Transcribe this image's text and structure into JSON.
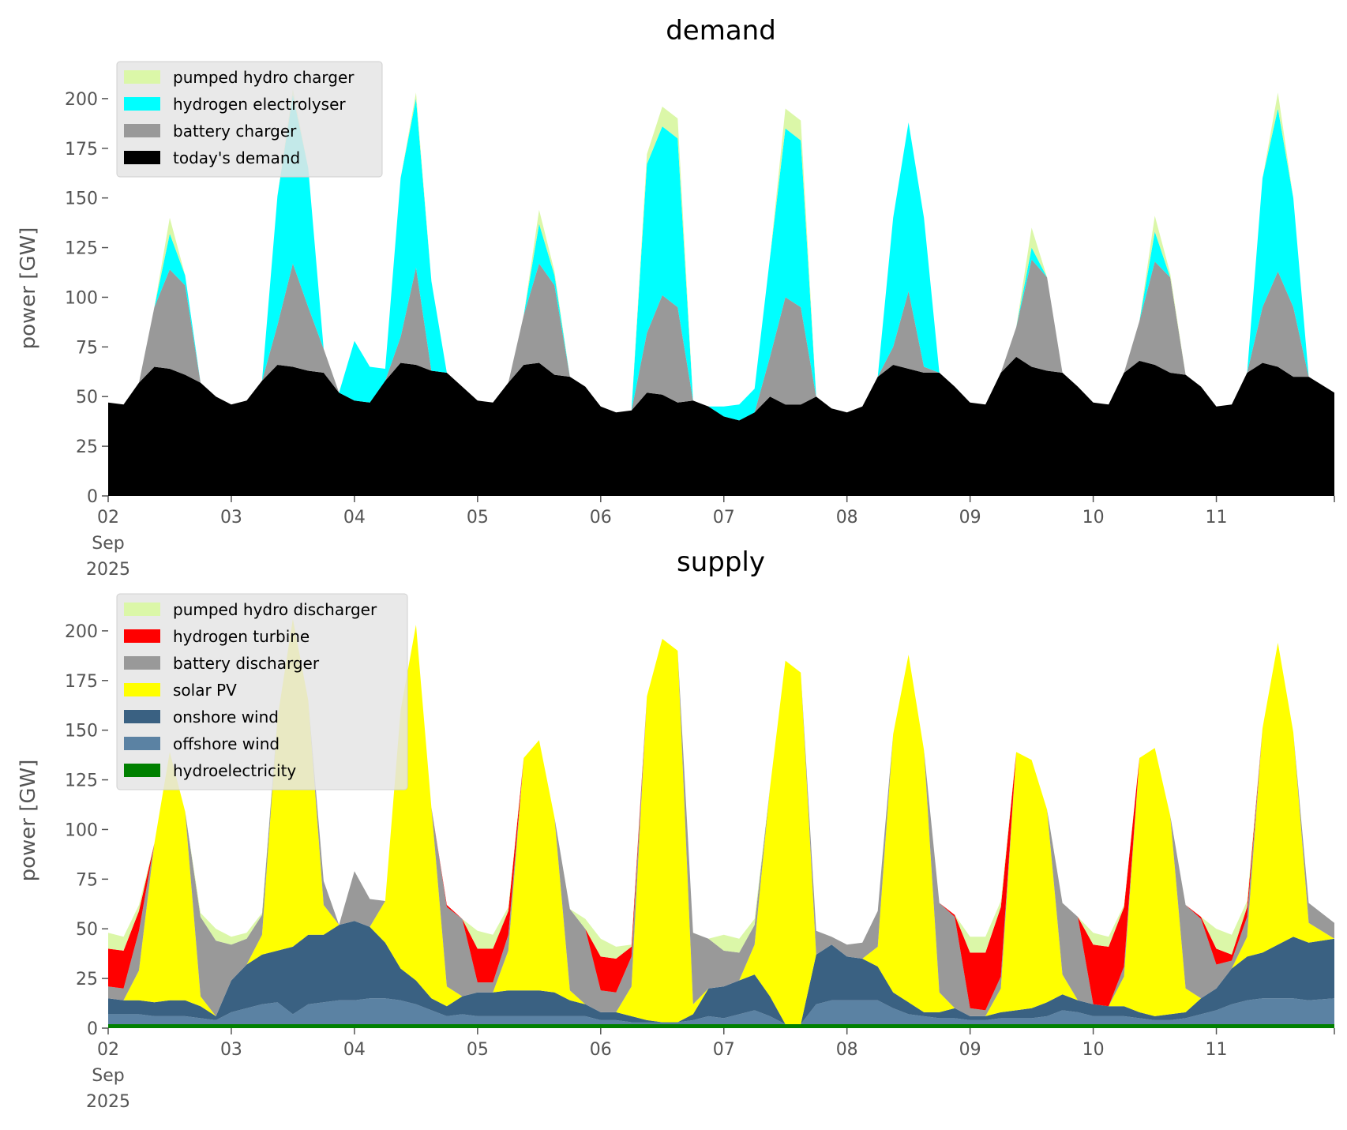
{
  "chart_data": [
    {
      "type": "area",
      "stacked": true,
      "title": "demand",
      "ylabel": "power [GW]",
      "xlabel": "",
      "ylim": [
        0,
        225
      ],
      "yticks": [
        0,
        25,
        50,
        75,
        100,
        125,
        150,
        175,
        200
      ],
      "x_start": "2025-09-02 00:00",
      "x_step_hours": 3,
      "x_range_hours": [
        0,
        239
      ],
      "xticks": [
        {
          "hour": 0,
          "label": "02",
          "sub1": "Sep",
          "sub2": "2025"
        },
        {
          "hour": 24,
          "label": "03"
        },
        {
          "hour": 48,
          "label": "04"
        },
        {
          "hour": 72,
          "label": "05"
        },
        {
          "hour": 96,
          "label": "06"
        },
        {
          "hour": 120,
          "label": "07"
        },
        {
          "hour": 144,
          "label": "08"
        },
        {
          "hour": 168,
          "label": "09"
        },
        {
          "hour": 192,
          "label": "10"
        },
        {
          "hour": 216,
          "label": "11"
        },
        {
          "hour": 239,
          "label": ""
        }
      ],
      "legend_position": "upper-left",
      "legend_order": [
        "pumped hydro charger",
        "hydrogen electrolyser",
        "battery charger",
        "today's demand"
      ],
      "series": [
        {
          "name": "today's demand",
          "color": "#000000",
          "values": [
            47,
            46,
            57,
            65,
            64,
            61,
            57,
            50,
            46,
            48,
            58,
            66,
            65,
            63,
            62,
            52,
            48,
            47,
            58,
            67,
            66,
            63,
            62,
            55,
            48,
            47,
            57,
            66,
            67,
            61,
            60,
            55,
            45,
            42,
            43,
            52,
            51,
            47,
            48,
            45,
            40,
            38,
            42,
            50,
            46,
            46,
            50,
            44,
            42,
            45,
            60,
            66,
            64,
            62,
            62,
            55,
            47,
            46,
            62,
            70,
            65,
            63,
            62,
            55,
            47,
            46,
            62,
            68,
            66,
            62,
            61,
            55,
            45,
            46,
            62,
            67,
            65,
            60,
            60,
            52
          ]
        },
        {
          "name": "battery charger",
          "color": "#999999",
          "values": [
            0,
            0,
            0,
            30,
            50,
            45,
            0,
            0,
            0,
            0,
            0,
            20,
            52,
            32,
            12,
            0,
            0,
            0,
            0,
            13,
            49,
            0,
            0,
            0,
            0,
            0,
            0,
            25,
            50,
            45,
            0,
            0,
            0,
            0,
            0,
            30,
            50,
            48,
            0,
            0,
            0,
            0,
            0,
            20,
            54,
            49,
            0,
            0,
            0,
            0,
            0,
            9,
            39,
            3,
            0,
            0,
            0,
            0,
            0,
            15,
            54,
            47,
            0,
            0,
            0,
            0,
            0,
            20,
            52,
            48,
            0,
            0,
            0,
            0,
            0,
            28,
            48,
            35,
            0,
            0
          ]
        },
        {
          "name": "hydrogen electrolyser",
          "color": "#00ffff",
          "values": [
            0,
            0,
            0,
            0,
            18,
            5,
            0,
            0,
            0,
            0,
            0,
            65,
            85,
            70,
            0,
            0,
            30,
            18,
            6,
            80,
            85,
            45,
            0,
            0,
            0,
            0,
            0,
            0,
            20,
            5,
            0,
            0,
            0,
            0,
            0,
            85,
            85,
            85,
            0,
            0,
            5,
            8,
            12,
            50,
            85,
            84,
            0,
            0,
            0,
            0,
            0,
            65,
            85,
            75,
            0,
            0,
            0,
            0,
            0,
            0,
            6,
            0,
            0,
            0,
            0,
            0,
            0,
            0,
            15,
            0,
            0,
            0,
            0,
            0,
            0,
            65,
            82,
            55,
            0,
            0
          ]
        },
        {
          "name": "pumped hydro charger",
          "color": "#dbf7a8",
          "values": [
            0,
            0,
            0,
            0,
            8,
            0,
            0,
            0,
            0,
            0,
            0,
            0,
            3,
            0,
            0,
            0,
            0,
            0,
            0,
            0,
            3,
            0,
            0,
            0,
            0,
            0,
            0,
            0,
            7,
            2,
            0,
            0,
            0,
            0,
            0,
            5,
            10,
            10,
            0,
            0,
            0,
            0,
            0,
            0,
            10,
            10,
            0,
            0,
            0,
            0,
            0,
            0,
            0,
            0,
            0,
            0,
            0,
            0,
            0,
            0,
            10,
            0,
            0,
            0,
            0,
            0,
            0,
            0,
            8,
            2,
            0,
            0,
            0,
            0,
            0,
            0,
            8,
            0,
            0,
            0
          ]
        }
      ]
    },
    {
      "type": "area",
      "stacked": true,
      "title": "supply",
      "ylabel": "power [GW]",
      "xlabel": "",
      "ylim": [
        0,
        225
      ],
      "yticks": [
        0,
        25,
        50,
        75,
        100,
        125,
        150,
        175,
        200
      ],
      "x_start": "2025-09-02 00:00",
      "x_step_hours": 3,
      "x_range_hours": [
        0,
        239
      ],
      "xticks": [
        {
          "hour": 0,
          "label": "02",
          "sub1": "Sep",
          "sub2": "2025"
        },
        {
          "hour": 24,
          "label": "03"
        },
        {
          "hour": 48,
          "label": "04"
        },
        {
          "hour": 72,
          "label": "05"
        },
        {
          "hour": 96,
          "label": "06"
        },
        {
          "hour": 120,
          "label": "07"
        },
        {
          "hour": 144,
          "label": "08"
        },
        {
          "hour": 168,
          "label": "09"
        },
        {
          "hour": 192,
          "label": "10"
        },
        {
          "hour": 216,
          "label": "11"
        },
        {
          "hour": 239,
          "label": ""
        }
      ],
      "legend_position": "upper-left",
      "legend_order": [
        "pumped hydro discharger",
        "hydrogen turbine",
        "battery discharger",
        "solar PV",
        "onshore wind",
        "offshore wind",
        "hydroelectricity"
      ],
      "series": [
        {
          "name": "hydroelectricity",
          "color": "#008000",
          "values": [
            2,
            2,
            2,
            2,
            2,
            2,
            2,
            2,
            2,
            2,
            2,
            2,
            2,
            2,
            2,
            2,
            2,
            2,
            2,
            2,
            2,
            2,
            2,
            2,
            2,
            2,
            2,
            2,
            2,
            2,
            2,
            2,
            2,
            2,
            2,
            2,
            2,
            2,
            2,
            2,
            2,
            2,
            2,
            2,
            2,
            2,
            2,
            2,
            2,
            2,
            2,
            2,
            2,
            2,
            2,
            2,
            2,
            2,
            2,
            2,
            2,
            2,
            2,
            2,
            2,
            2,
            2,
            2,
            2,
            2,
            2,
            2,
            2,
            2,
            2,
            2,
            2,
            2,
            2,
            2
          ]
        },
        {
          "name": "offshore wind",
          "color": "#5b82a3",
          "values": [
            5,
            5,
            5,
            4,
            4,
            4,
            3,
            2,
            6,
            8,
            10,
            11,
            5,
            10,
            11,
            12,
            12,
            13,
            13,
            12,
            10,
            7,
            4,
            5,
            4,
            4,
            4,
            4,
            4,
            4,
            4,
            4,
            2,
            2,
            1,
            1,
            1,
            1,
            2,
            4,
            3,
            5,
            7,
            4,
            0,
            0,
            10,
            12,
            12,
            12,
            12,
            8,
            5,
            4,
            3,
            3,
            2,
            2,
            3,
            3,
            3,
            4,
            7,
            6,
            4,
            4,
            4,
            3,
            2,
            2,
            3,
            5,
            7,
            10,
            12,
            13,
            13,
            13,
            12,
            13
          ]
        },
        {
          "name": "onshore wind",
          "color": "#3a6182",
          "values": [
            8,
            7,
            7,
            7,
            8,
            8,
            6,
            2,
            16,
            22,
            25,
            26,
            34,
            35,
            34,
            38,
            40,
            36,
            28,
            16,
            12,
            6,
            5,
            9,
            12,
            12,
            13,
            13,
            13,
            12,
            8,
            6,
            4,
            4,
            3,
            1,
            0,
            0,
            3,
            14,
            16,
            17,
            18,
            10,
            0,
            0,
            25,
            28,
            22,
            21,
            17,
            8,
            6,
            2,
            3,
            5,
            2,
            2,
            3,
            4,
            5,
            7,
            8,
            6,
            6,
            5,
            5,
            3,
            2,
            3,
            3,
            8,
            11,
            18,
            22,
            23,
            27,
            31,
            29,
            30
          ]
        },
        {
          "name": "solar PV",
          "color": "#ffff00",
          "values": [
            0,
            0,
            15,
            80,
            125,
            95,
            5,
            0,
            0,
            0,
            10,
            117,
            165,
            118,
            15,
            0,
            0,
            0,
            21,
            130,
            179,
            96,
            10,
            0,
            0,
            0,
            20,
            117,
            126,
            88,
            5,
            0,
            0,
            0,
            15,
            163,
            193,
            187,
            5,
            0,
            0,
            0,
            15,
            105,
            183,
            177,
            0,
            0,
            0,
            0,
            10,
            130,
            175,
            132,
            10,
            0,
            0,
            0,
            12,
            130,
            125,
            97,
            10,
            0,
            0,
            0,
            15,
            128,
            135,
            100,
            12,
            0,
            0,
            0,
            10,
            113,
            152,
            103,
            10,
            0
          ]
        },
        {
          "name": "battery discharger",
          "color": "#999999",
          "values": [
            6,
            6,
            20,
            0,
            0,
            0,
            40,
            38,
            18,
            13,
            10,
            0,
            0,
            0,
            12,
            0,
            25,
            14,
            0,
            0,
            0,
            0,
            40,
            39,
            5,
            5,
            8,
            0,
            0,
            0,
            41,
            38,
            11,
            10,
            15,
            0,
            0,
            0,
            36,
            25,
            18,
            14,
            10,
            0,
            0,
            0,
            12,
            4,
            6,
            8,
            18,
            0,
            0,
            0,
            45,
            46,
            4,
            3,
            6,
            0,
            0,
            0,
            36,
            42,
            0,
            0,
            5,
            0,
            0,
            0,
            42,
            40,
            12,
            4,
            10,
            0,
            0,
            0,
            10,
            8
          ]
        },
        {
          "name": "hydrogen turbine",
          "color": "#ff0000",
          "values": [
            19,
            19,
            10,
            0,
            0,
            0,
            0,
            0,
            0,
            0,
            0,
            0,
            0,
            0,
            0,
            0,
            0,
            0,
            0,
            0,
            0,
            0,
            1,
            0,
            17,
            17,
            12,
            0,
            0,
            0,
            0,
            0,
            17,
            17,
            5,
            0,
            0,
            0,
            0,
            0,
            0,
            0,
            0,
            0,
            0,
            0,
            0,
            0,
            0,
            0,
            0,
            0,
            0,
            0,
            0,
            1,
            28,
            29,
            35,
            0,
            0,
            0,
            0,
            0,
            30,
            30,
            30,
            0,
            0,
            0,
            0,
            1,
            8,
            3,
            5,
            0,
            0,
            0,
            0,
            0
          ]
        },
        {
          "name": "pumped hydro discharger",
          "color": "#dbf7a8",
          "values": [
            8,
            7,
            3,
            0,
            0,
            0,
            2,
            6,
            4,
            3,
            1,
            0,
            0,
            0,
            0,
            0,
            0,
            0,
            0,
            0,
            0,
            0,
            0,
            0,
            9,
            7,
            2,
            0,
            0,
            0,
            0,
            5,
            9,
            6,
            1,
            0,
            0,
            0,
            0,
            0,
            8,
            7,
            3,
            0,
            0,
            0,
            0,
            0,
            0,
            0,
            0,
            0,
            0,
            0,
            0,
            0,
            8,
            8,
            3,
            0,
            0,
            0,
            0,
            0,
            6,
            5,
            1,
            0,
            0,
            0,
            0,
            0,
            10,
            10,
            3,
            0,
            0,
            0,
            0,
            0
          ]
        }
      ]
    }
  ]
}
